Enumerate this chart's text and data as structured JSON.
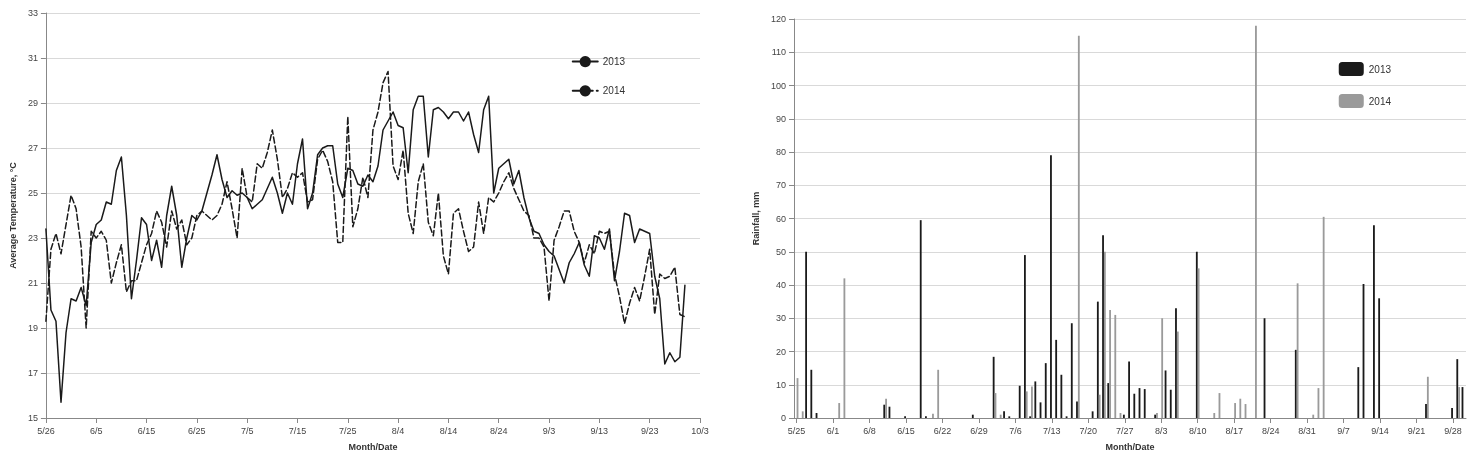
{
  "chart_data": [
    {
      "type": "line",
      "xlabel": "Month/Date",
      "ylabel": "Average Temperature, °C",
      "categories": [
        "5/26",
        null,
        null,
        null,
        null,
        null,
        null,
        null,
        null,
        null,
        "6/5",
        null,
        null,
        null,
        null,
        null,
        null,
        null,
        null,
        null,
        "6/15",
        null,
        null,
        null,
        null,
        null,
        null,
        null,
        null,
        null,
        "6/25",
        null,
        null,
        null,
        null,
        null,
        null,
        null,
        null,
        null,
        "7/5",
        null,
        null,
        null,
        null,
        null,
        null,
        null,
        null,
        null,
        "7/15",
        null,
        null,
        null,
        null,
        null,
        null,
        null,
        null,
        null,
        "7/25",
        null,
        null,
        null,
        null,
        null,
        null,
        null,
        null,
        null,
        "8/4",
        null,
        null,
        null,
        null,
        null,
        null,
        null,
        null,
        null,
        "8/14",
        null,
        null,
        null,
        null,
        null,
        null,
        null,
        null,
        null,
        "8/24",
        null,
        null,
        null,
        null,
        null,
        null,
        null,
        null,
        null,
        "9/3",
        null,
        null,
        null,
        null,
        null,
        null,
        null,
        null,
        null,
        "9/13",
        null,
        null,
        null,
        null,
        null,
        null,
        null,
        null,
        null,
        "9/23",
        null,
        null,
        null,
        null,
        null,
        null,
        null,
        null,
        null,
        "10/3"
      ],
      "series": [
        {
          "name": "2013",
          "color": "#1a1a1a",
          "line_style": "solid",
          "values": [
            23.4,
            19.8,
            19.3,
            15.7,
            18.8,
            20.3,
            20.2,
            20.8,
            20.0,
            22.8,
            23.6,
            23.8,
            24.6,
            24.5,
            26.0,
            26.6,
            24.0,
            20.3,
            22.0,
            23.9,
            23.6,
            22.0,
            22.9,
            21.7,
            24.0,
            25.3,
            24.0,
            21.7,
            23.0,
            24.0,
            23.8,
            24.2,
            25.0,
            25.8,
            26.7,
            25.6,
            24.8,
            25.1,
            24.9,
            25.0,
            24.8,
            24.3,
            24.5,
            24.7,
            25.2,
            25.7,
            25.0,
            24.1,
            25.0,
            24.5,
            26.3,
            27.4,
            24.3,
            25.0,
            26.7,
            27.0,
            27.1,
            27.1,
            25.4,
            24.8,
            26.1,
            26.0,
            25.4,
            25.3,
            25.8,
            25.5,
            26.2,
            27.8,
            28.2,
            28.6,
            28.0,
            27.9,
            25.9,
            28.7,
            29.3,
            29.3,
            26.6,
            28.7,
            28.8,
            28.6,
            28.3,
            28.6,
            28.6,
            28.2,
            28.6,
            27.6,
            26.8,
            28.7,
            29.3,
            25.0,
            26.1,
            26.3,
            26.5,
            25.4,
            26.0,
            24.8,
            23.9,
            23.3,
            23.2,
            22.7,
            22.4,
            22.2,
            21.6,
            21.0,
            21.9,
            22.3,
            22.8,
            21.8,
            21.3,
            23.1,
            23.0,
            22.5,
            23.4,
            21.1,
            22.4,
            24.1,
            24.0,
            22.8,
            23.4,
            23.3,
            23.2,
            21.3,
            20.3,
            17.4,
            17.9,
            17.5,
            17.7,
            20.9,
            null,
            null,
            null
          ]
        },
        {
          "name": "2014",
          "color": "#1a1a1a",
          "line_style": "dashed",
          "values": [
            19.3,
            22.5,
            23.2,
            22.3,
            23.6,
            24.9,
            24.3,
            22.6,
            19.0,
            23.3,
            23.0,
            23.3,
            22.9,
            21.0,
            21.9,
            22.7,
            20.6,
            21.1,
            21.1,
            21.9,
            22.7,
            23.2,
            24.2,
            23.7,
            22.6,
            24.2,
            23.4,
            23.8,
            22.7,
            23.0,
            24.0,
            24.2,
            24.0,
            23.8,
            24.0,
            24.5,
            25.5,
            24.3,
            23.0,
            26.1,
            24.8,
            24.6,
            26.3,
            26.1,
            26.8,
            27.8,
            26.5,
            24.8,
            25.2,
            25.9,
            25.7,
            25.9,
            24.6,
            24.7,
            26.5,
            26.9,
            26.4,
            25.5,
            22.8,
            22.8,
            28.4,
            23.5,
            24.3,
            25.7,
            24.8,
            27.8,
            28.6,
            29.9,
            30.4,
            26.2,
            25.6,
            26.9,
            24.1,
            23.2,
            25.5,
            26.3,
            23.7,
            23.1,
            25.0,
            22.2,
            21.4,
            24.1,
            24.3,
            23.3,
            22.4,
            22.6,
            24.6,
            23.2,
            24.8,
            24.6,
            25.0,
            25.5,
            25.9,
            25.2,
            24.7,
            24.2,
            24.0,
            23.0,
            23.0,
            22.6,
            20.2,
            22.9,
            23.5,
            24.2,
            24.2,
            23.3,
            22.8,
            21.9,
            22.7,
            22.3,
            23.3,
            23.2,
            23.3,
            21.4,
            20.4,
            19.2,
            20.1,
            20.8,
            20.2,
            21.3,
            22.5,
            19.6,
            21.4,
            21.2,
            21.3,
            21.7,
            19.6,
            19.5,
            null,
            null,
            null
          ]
        }
      ],
      "ylim": [
        15,
        33
      ],
      "yticks": [
        15,
        17,
        19,
        21,
        23,
        25,
        27,
        29,
        31,
        33
      ],
      "grid": "y",
      "legend": "top right",
      "marker": "none"
    },
    {
      "type": "bar",
      "xlabel": "Month/Date",
      "ylabel": "Rainfall, mm",
      "categories": [
        "5/25",
        null,
        null,
        null,
        null,
        null,
        null,
        "6/1",
        null,
        null,
        null,
        null,
        null,
        null,
        "6/8",
        null,
        null,
        null,
        null,
        null,
        null,
        "6/15",
        null,
        null,
        null,
        null,
        null,
        null,
        "6/22",
        null,
        null,
        null,
        null,
        null,
        null,
        "6/29",
        null,
        null,
        null,
        null,
        null,
        null,
        "7/6",
        null,
        null,
        null,
        null,
        null,
        null,
        "7/13",
        null,
        null,
        null,
        null,
        null,
        null,
        "7/20",
        null,
        null,
        null,
        null,
        null,
        null,
        "7/27",
        null,
        null,
        null,
        null,
        null,
        null,
        "8/3",
        null,
        null,
        null,
        null,
        null,
        null,
        "8/10",
        null,
        null,
        null,
        null,
        null,
        null,
        "8/17",
        null,
        null,
        null,
        null,
        null,
        null,
        "8/24",
        null,
        null,
        null,
        null,
        null,
        null,
        "8/31",
        null,
        null,
        null,
        null,
        null,
        null,
        "9/7",
        null,
        null,
        null,
        null,
        null,
        null,
        "9/14",
        null,
        null,
        null,
        null,
        null,
        null,
        "9/21",
        null,
        null,
        null,
        null,
        null,
        null,
        "9/28",
        null,
        null
      ],
      "series": [
        {
          "name": "2013",
          "color": "#1a1a1a",
          "values": [
            0,
            0,
            50,
            14.5,
            1.5,
            0,
            0,
            0,
            0,
            0,
            0,
            0,
            0,
            0,
            0,
            0,
            0,
            4,
            3.4,
            0,
            0,
            0.5,
            0,
            0,
            59.5,
            0.5,
            0,
            0,
            0,
            0,
            0,
            0,
            0,
            0,
            1,
            0,
            0,
            0,
            18.4,
            0,
            2,
            0.5,
            0,
            9.7,
            49,
            0.5,
            11,
            4.7,
            16.5,
            79,
            23.5,
            13,
            0.5,
            28.5,
            5,
            0,
            0,
            2,
            35,
            55,
            10.5,
            0,
            0,
            1,
            17,
            7.3,
            9,
            8.7,
            0,
            1,
            0,
            14.3,
            8.5,
            33,
            0,
            0,
            0,
            50,
            0,
            0,
            0,
            0,
            0,
            0,
            0,
            0,
            0,
            0,
            0,
            0,
            30,
            0,
            0,
            0,
            0,
            0,
            20.5,
            0,
            0,
            0,
            0,
            0,
            0,
            0,
            0,
            0,
            0,
            0,
            15.3,
            40.3,
            0,
            58,
            36,
            0,
            0,
            0,
            0,
            0,
            0,
            0,
            0,
            4.2,
            0,
            0,
            0,
            0,
            3,
            17.7,
            9.3
          ]
        },
        {
          "name": "2014",
          "color": "#9a9a9a",
          "values": [
            12,
            2,
            0,
            0,
            0,
            0,
            0,
            0,
            4.5,
            42,
            0,
            0,
            0,
            0,
            0,
            0,
            0,
            5.8,
            0,
            0,
            0,
            0,
            0,
            0,
            0,
            0,
            1.3,
            14.5,
            0,
            0,
            0,
            0,
            0,
            0,
            0,
            0,
            0,
            0,
            7.5,
            1,
            0,
            0,
            0,
            0,
            8,
            9.5,
            0,
            0,
            0,
            0,
            0,
            0,
            0,
            0,
            115,
            0,
            0,
            0,
            7,
            50,
            32.5,
            31,
            1.5,
            0,
            0,
            0,
            0,
            0,
            0,
            1.5,
            30,
            0,
            0,
            26,
            0,
            0,
            0,
            45,
            0,
            0,
            1.5,
            7.5,
            0,
            0,
            4.5,
            5.8,
            4.2,
            0,
            118,
            0,
            0,
            0,
            0,
            0,
            0,
            0,
            40.5,
            0,
            0,
            1,
            9,
            60.5,
            0,
            0,
            0,
            0,
            0,
            0,
            0,
            0,
            0,
            0,
            0,
            0,
            0,
            0,
            0,
            0,
            0,
            0,
            0,
            12.4,
            0,
            0,
            0,
            0,
            0,
            9.3,
            0
          ]
        }
      ],
      "ylim": [
        0,
        120
      ],
      "yticks": [
        0,
        10,
        20,
        30,
        40,
        50,
        60,
        70,
        80,
        90,
        100,
        110,
        120
      ],
      "grid": "y",
      "legend": "top right"
    }
  ]
}
